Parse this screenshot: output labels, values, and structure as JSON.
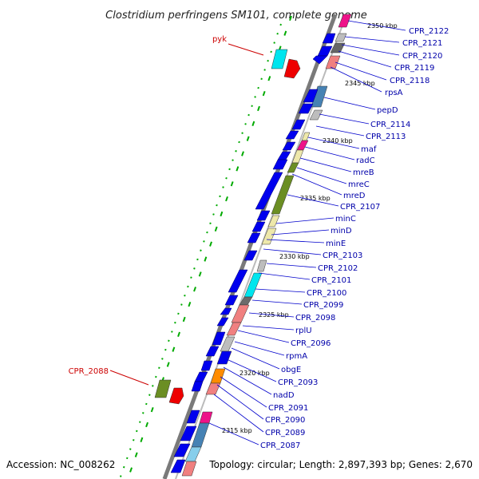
{
  "title": "Clostridium perfringens SM101, complete genome",
  "accession": "Accession: NC_008262",
  "summary": "Topology: circular; Length: 2,897,393 bp; Genes: 2,670",
  "kbp_markers": [
    "2350 kbp",
    "2345 kbp",
    "2340 kbp",
    "2335 kbp",
    "2330 kbp",
    "2325 kbp",
    "2320 kbp",
    "2315 kbp"
  ],
  "right_labels": [
    "CPR_2122",
    "CPR_2121",
    "CPR_2120",
    "CPR_2119",
    "CPR_2118",
    "rpsA",
    "pepD",
    "CPR_2114",
    "CPR_2113",
    "maf",
    "radC",
    "mreB",
    "mreC",
    "mreD",
    "CPR_2107",
    "minC",
    "minD",
    "minE",
    "CPR_2103",
    "CPR_2102",
    "CPR_2101",
    "CPR_2100",
    "CPR_2099",
    "CPR_2098",
    "rplU",
    "CPR_2096",
    "rpmA",
    "obgE",
    "CPR_2093",
    "nadD",
    "CPR_2091",
    "CPR_2090",
    "CPR_2089",
    "CPR_2087"
  ],
  "left_labels": [
    "pyk",
    "CPR_2088"
  ],
  "colors": {
    "label_blue": "#0000aa",
    "label_red": "#cc0000",
    "gene_blue": "#0000ee",
    "olive": "#6b8e23",
    "khaki": "#eee8aa",
    "salmon": "#f08080",
    "cyan": "#00e5ee",
    "magenta": "#ee1289",
    "grey": "#bdbdbd",
    "steel": "#4682b4",
    "orange": "#ff8c00",
    "red": "#ee0000",
    "dot_green": "#00aa00"
  }
}
